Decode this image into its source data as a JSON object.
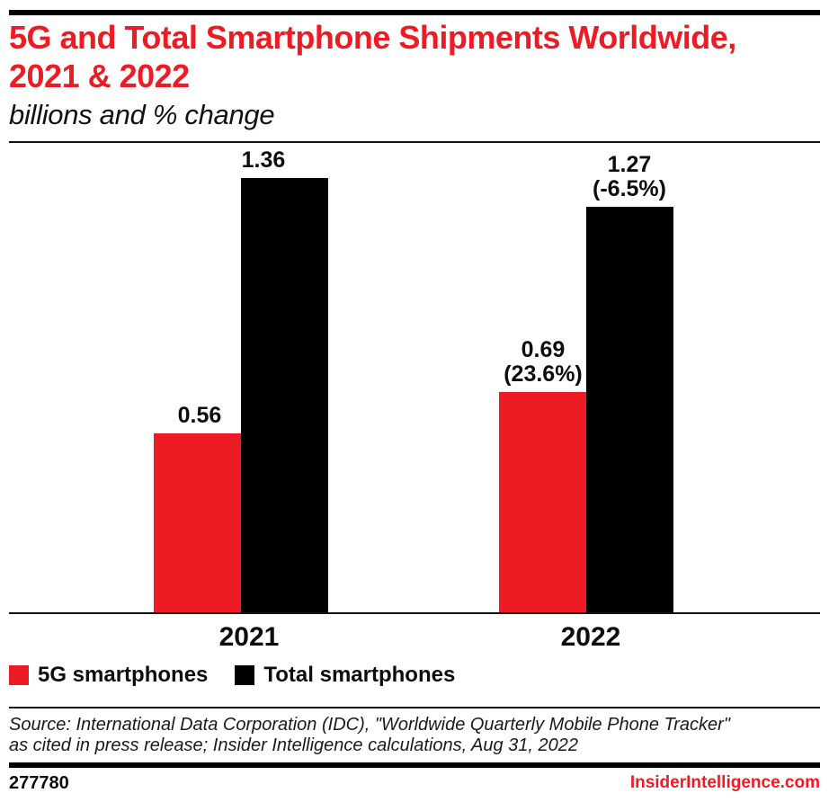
{
  "header": {
    "title_lines": [
      "5G and Total Smartphone Shipments Worldwide,",
      "2021 & 2022"
    ],
    "title_color": "#ED1C24",
    "subtitle": "billions and % change"
  },
  "chart_data": {
    "type": "bar",
    "title": "5G and Total Smartphone Shipments Worldwide, 2021 & 2022",
    "subtitle": "billions and % change",
    "unit": "billions of smartphone shipments",
    "categories": [
      "2021",
      "2022"
    ],
    "series": [
      {
        "name": "5G smartphones",
        "color": "#ED1C24",
        "values": [
          0.56,
          0.69
        ],
        "pct_change": [
          null,
          "23.6%"
        ],
        "bar_labels": [
          [
            "0.56"
          ],
          [
            "0.69",
            "(23.6%)"
          ]
        ]
      },
      {
        "name": "Total smartphones",
        "color": "#000000",
        "values": [
          1.36,
          1.27
        ],
        "pct_change": [
          null,
          "-6.5%"
        ],
        "bar_labels": [
          [
            "1.36"
          ],
          [
            "1.27",
            "(-6.5%)"
          ]
        ]
      }
    ],
    "ylim": [
      0,
      1.36
    ],
    "grid": false,
    "legend_position": "bottom",
    "accent_black": "#000000"
  },
  "source": {
    "line1": "Source: International Data Corporation (IDC), \"Worldwide Quarterly Mobile Phone Tracker\"",
    "line2": "as cited in press release; Insider Intelligence calculations, Aug 31, 2022"
  },
  "footer": {
    "chart_id": "277780",
    "website": "InsiderIntelligence.com",
    "website_color": "#ED1C24"
  }
}
